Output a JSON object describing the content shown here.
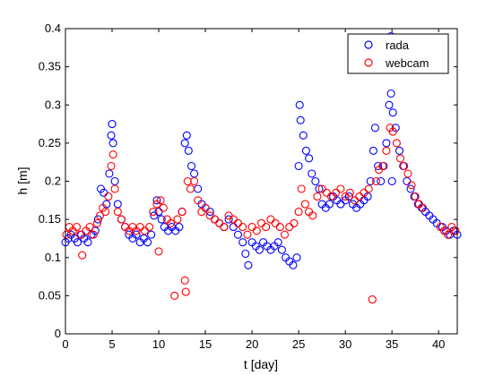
{
  "chart_data": {
    "type": "scatter",
    "xlabel": "t [day]",
    "ylabel": "h [m]",
    "xlim": [
      0,
      42
    ],
    "ylim": [
      0,
      0.4
    ],
    "x_ticks": [
      "0",
      "5",
      "10",
      "15",
      "20",
      "25",
      "30",
      "35",
      "40"
    ],
    "y_ticks": [
      "0",
      "0.05",
      "0.1",
      "0.15",
      "0.2",
      "0.25",
      "0.3",
      "0.35",
      "0.4"
    ],
    "grid": false,
    "legend_position": "top-right",
    "marker": "open-circle",
    "series": [
      {
        "name": "rada",
        "color": "#0000ff",
        "points": [
          [
            0.0,
            0.12
          ],
          [
            0.3,
            0.125
          ],
          [
            0.6,
            0.13
          ],
          [
            1.0,
            0.125
          ],
          [
            1.3,
            0.12
          ],
          [
            1.7,
            0.13
          ],
          [
            2.0,
            0.125
          ],
          [
            2.4,
            0.12
          ],
          [
            2.8,
            0.13
          ],
          [
            3.2,
            0.135
          ],
          [
            3.5,
            0.15
          ],
          [
            3.8,
            0.19
          ],
          [
            4.1,
            0.185
          ],
          [
            4.4,
            0.17
          ],
          [
            4.7,
            0.21
          ],
          [
            4.9,
            0.26
          ],
          [
            5.0,
            0.275
          ],
          [
            5.1,
            0.25
          ],
          [
            5.3,
            0.2
          ],
          [
            5.6,
            0.17
          ],
          [
            6.0,
            0.15
          ],
          [
            6.4,
            0.14
          ],
          [
            6.8,
            0.13
          ],
          [
            7.2,
            0.125
          ],
          [
            7.6,
            0.13
          ],
          [
            8.0,
            0.12
          ],
          [
            8.4,
            0.125
          ],
          [
            8.8,
            0.12
          ],
          [
            9.2,
            0.13
          ],
          [
            9.5,
            0.155
          ],
          [
            9.8,
            0.175
          ],
          [
            10.0,
            0.16
          ],
          [
            10.3,
            0.15
          ],
          [
            10.6,
            0.14
          ],
          [
            11.0,
            0.135
          ],
          [
            11.4,
            0.14
          ],
          [
            11.8,
            0.135
          ],
          [
            12.2,
            0.14
          ],
          [
            12.5,
            0.16
          ],
          [
            12.8,
            0.25
          ],
          [
            13.0,
            0.26
          ],
          [
            13.2,
            0.24
          ],
          [
            13.5,
            0.22
          ],
          [
            13.8,
            0.21
          ],
          [
            14.2,
            0.19
          ],
          [
            14.6,
            0.17
          ],
          [
            15.0,
            0.165
          ],
          [
            15.5,
            0.16
          ],
          [
            16.0,
            0.15
          ],
          [
            16.5,
            0.145
          ],
          [
            17.0,
            0.14
          ],
          [
            17.5,
            0.15
          ],
          [
            18.0,
            0.14
          ],
          [
            18.5,
            0.13
          ],
          [
            19.0,
            0.12
          ],
          [
            19.3,
            0.105
          ],
          [
            19.6,
            0.09
          ],
          [
            20.0,
            0.12
          ],
          [
            20.4,
            0.115
          ],
          [
            20.8,
            0.11
          ],
          [
            21.2,
            0.12
          ],
          [
            21.6,
            0.115
          ],
          [
            22.0,
            0.11
          ],
          [
            22.4,
            0.115
          ],
          [
            22.8,
            0.12
          ],
          [
            23.2,
            0.11
          ],
          [
            23.6,
            0.1
          ],
          [
            24.0,
            0.095
          ],
          [
            24.4,
            0.09
          ],
          [
            24.8,
            0.1
          ],
          [
            25.0,
            0.22
          ],
          [
            25.1,
            0.3
          ],
          [
            25.2,
            0.28
          ],
          [
            25.5,
            0.26
          ],
          [
            25.8,
            0.24
          ],
          [
            26.1,
            0.23
          ],
          [
            26.4,
            0.21
          ],
          [
            26.8,
            0.2
          ],
          [
            27.2,
            0.19
          ],
          [
            27.5,
            0.17
          ],
          [
            27.9,
            0.165
          ],
          [
            28.3,
            0.17
          ],
          [
            28.7,
            0.18
          ],
          [
            29.1,
            0.175
          ],
          [
            29.5,
            0.17
          ],
          [
            30.0,
            0.175
          ],
          [
            30.4,
            0.18
          ],
          [
            30.8,
            0.17
          ],
          [
            31.2,
            0.165
          ],
          [
            31.6,
            0.17
          ],
          [
            32.0,
            0.175
          ],
          [
            32.4,
            0.18
          ],
          [
            32.7,
            0.2
          ],
          [
            33.0,
            0.24
          ],
          [
            33.2,
            0.27
          ],
          [
            33.5,
            0.22
          ],
          [
            33.8,
            0.2
          ],
          [
            34.1,
            0.22
          ],
          [
            34.4,
            0.25
          ],
          [
            34.7,
            0.3
          ],
          [
            34.9,
            0.315
          ],
          [
            35.1,
            0.29
          ],
          [
            35.4,
            0.27
          ],
          [
            35.8,
            0.24
          ],
          [
            36.2,
            0.22
          ],
          [
            36.6,
            0.2
          ],
          [
            37.0,
            0.19
          ],
          [
            37.4,
            0.18
          ],
          [
            37.8,
            0.17
          ],
          [
            38.2,
            0.165
          ],
          [
            38.6,
            0.16
          ],
          [
            39.0,
            0.155
          ],
          [
            39.4,
            0.15
          ],
          [
            39.8,
            0.145
          ],
          [
            40.4,
            0.14
          ],
          [
            40.8,
            0.135
          ],
          [
            41.2,
            0.13
          ],
          [
            41.6,
            0.135
          ],
          [
            42.0,
            0.13
          ],
          [
            34.9,
            0.39
          ],
          [
            35.0,
            0.2
          ]
        ]
      },
      {
        "name": "webcam",
        "color": "#ff0000",
        "points": [
          [
            0.1,
            0.13
          ],
          [
            0.4,
            0.14
          ],
          [
            0.8,
            0.135
          ],
          [
            1.2,
            0.14
          ],
          [
            1.6,
            0.13
          ],
          [
            1.8,
            0.103
          ],
          [
            2.2,
            0.135
          ],
          [
            2.6,
            0.14
          ],
          [
            3.0,
            0.13
          ],
          [
            3.4,
            0.145
          ],
          [
            3.7,
            0.155
          ],
          [
            4.0,
            0.165
          ],
          [
            4.3,
            0.16
          ],
          [
            4.6,
            0.18
          ],
          [
            4.9,
            0.22
          ],
          [
            5.1,
            0.235
          ],
          [
            5.3,
            0.19
          ],
          [
            5.6,
            0.16
          ],
          [
            6.0,
            0.15
          ],
          [
            6.4,
            0.14
          ],
          [
            6.8,
            0.135
          ],
          [
            7.2,
            0.14
          ],
          [
            7.6,
            0.135
          ],
          [
            8.0,
            0.14
          ],
          [
            8.5,
            0.135
          ],
          [
            9.0,
            0.14
          ],
          [
            9.4,
            0.16
          ],
          [
            9.8,
            0.17
          ],
          [
            10.0,
            0.108
          ],
          [
            10.2,
            0.175
          ],
          [
            10.5,
            0.165
          ],
          [
            10.9,
            0.15
          ],
          [
            11.3,
            0.145
          ],
          [
            11.7,
            0.05
          ],
          [
            12.0,
            0.15
          ],
          [
            12.5,
            0.16
          ],
          [
            12.8,
            0.07
          ],
          [
            12.9,
            0.055
          ],
          [
            13.1,
            0.2
          ],
          [
            13.4,
            0.19
          ],
          [
            13.8,
            0.2
          ],
          [
            14.2,
            0.175
          ],
          [
            14.6,
            0.16
          ],
          [
            15.0,
            0.165
          ],
          [
            15.5,
            0.155
          ],
          [
            16.0,
            0.15
          ],
          [
            16.5,
            0.145
          ],
          [
            17.0,
            0.14
          ],
          [
            17.5,
            0.155
          ],
          [
            18.0,
            0.15
          ],
          [
            18.5,
            0.145
          ],
          [
            19.0,
            0.14
          ],
          [
            19.5,
            0.13
          ],
          [
            20.0,
            0.14
          ],
          [
            20.5,
            0.135
          ],
          [
            21.0,
            0.145
          ],
          [
            21.5,
            0.14
          ],
          [
            22.0,
            0.15
          ],
          [
            22.5,
            0.145
          ],
          [
            23.0,
            0.14
          ],
          [
            23.5,
            0.13
          ],
          [
            24.0,
            0.14
          ],
          [
            24.5,
            0.145
          ],
          [
            25.0,
            0.16
          ],
          [
            25.3,
            0.19
          ],
          [
            25.7,
            0.17
          ],
          [
            26.1,
            0.16
          ],
          [
            26.5,
            0.155
          ],
          [
            27.0,
            0.18
          ],
          [
            27.5,
            0.19
          ],
          [
            28.0,
            0.185
          ],
          [
            28.5,
            0.18
          ],
          [
            29.0,
            0.185
          ],
          [
            29.5,
            0.19
          ],
          [
            30.0,
            0.18
          ],
          [
            30.5,
            0.185
          ],
          [
            31.0,
            0.175
          ],
          [
            31.5,
            0.18
          ],
          [
            32.0,
            0.185
          ],
          [
            32.5,
            0.19
          ],
          [
            32.9,
            0.045
          ],
          [
            33.3,
            0.2
          ],
          [
            33.6,
            0.215
          ],
          [
            34.0,
            0.22
          ],
          [
            34.4,
            0.24
          ],
          [
            34.8,
            0.27
          ],
          [
            35.1,
            0.265
          ],
          [
            35.5,
            0.25
          ],
          [
            35.9,
            0.23
          ],
          [
            36.3,
            0.22
          ],
          [
            36.7,
            0.21
          ],
          [
            37.1,
            0.195
          ],
          [
            37.5,
            0.18
          ],
          [
            37.9,
            0.17
          ],
          [
            38.3,
            0.165
          ],
          [
            40.2,
            0.14
          ],
          [
            40.6,
            0.135
          ],
          [
            41.0,
            0.13
          ],
          [
            41.4,
            0.14
          ],
          [
            41.8,
            0.135
          ]
        ]
      }
    ]
  }
}
